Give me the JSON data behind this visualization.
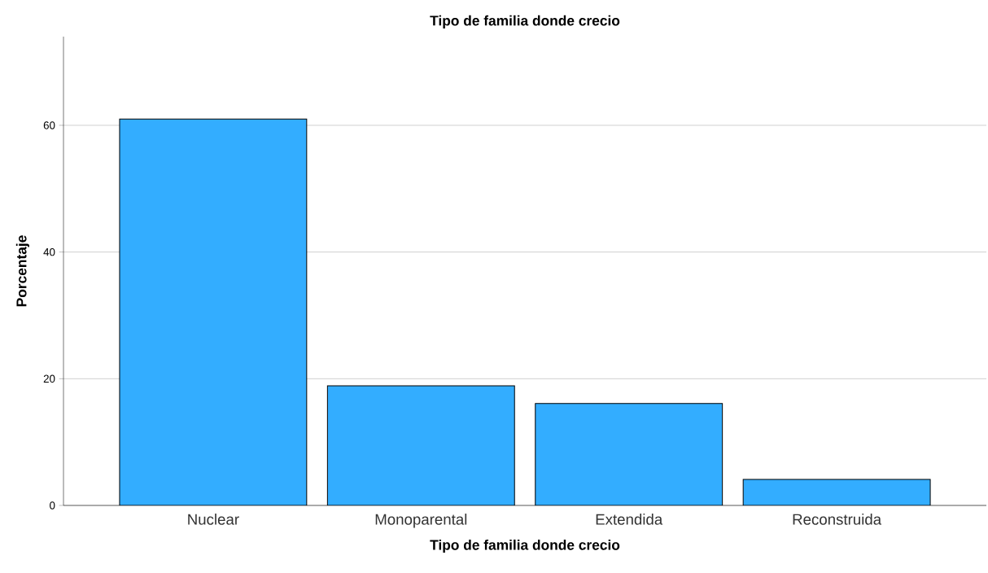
{
  "chart_data": {
    "type": "bar",
    "title": "Tipo de familia donde crecio",
    "xlabel": "Tipo de familia donde crecio",
    "ylabel": "Porcentaje",
    "categories": [
      "Nuclear",
      "Monoparental",
      "Extendida",
      "Reconstruida"
    ],
    "values": [
      61.0,
      18.9,
      16.1,
      4.1
    ],
    "color": "#33adff",
    "ylim": [
      0,
      74
    ],
    "yticks": [
      0,
      20,
      40,
      60
    ],
    "grid": "y"
  }
}
